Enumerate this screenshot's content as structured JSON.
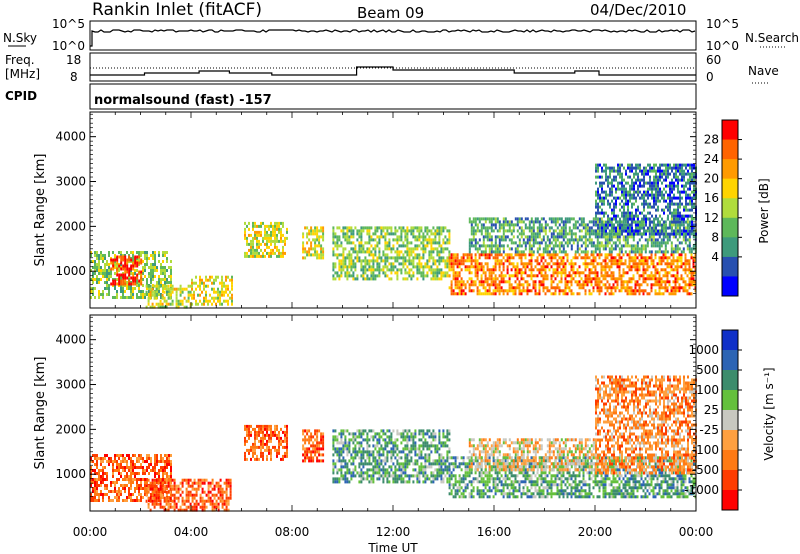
{
  "header": {
    "station": "Rankin Inlet (fitACF)",
    "beam": "Beam 09",
    "date": "04/Dec/2010"
  },
  "status_panels": {
    "nsky_label": "N.Sky",
    "nsearch_label": "N.Search",
    "log_ticks": [
      "10^5",
      "10^0"
    ],
    "freq_label_line1": "Freq.",
    "freq_label_line2": "[MHz]",
    "freq_ticks": [
      "18",
      "8"
    ],
    "nave_label": "Nave",
    "nave_ticks": [
      "60",
      "0"
    ],
    "cpid_label": "CPID",
    "cpid_text": "normalsound (fast) -157"
  },
  "power_colorbar": {
    "label": "Power [dB]",
    "ticks": [
      "28",
      "24",
      "20",
      "16",
      "12",
      "8",
      "4"
    ],
    "colors": [
      "#ff0000",
      "#ff6400",
      "#ff9a00",
      "#ffd400",
      "#b0dc3c",
      "#5eb85a",
      "#3e9a7c",
      "#2850b0",
      "#0000ff"
    ]
  },
  "velocity_colorbar": {
    "label": "Velocity [m s⁻¹]",
    "ticks": [
      "1000",
      "500",
      "100",
      "25",
      "-25",
      "-100",
      "-500",
      "-1000"
    ],
    "colors": [
      "#1030c8",
      "#2c64b4",
      "#3c8c6c",
      "#64c03c",
      "#c8c8c0",
      "#ffa040",
      "#ff7a14",
      "#ff3c00",
      "#ff0000"
    ]
  },
  "chart_data": [
    {
      "type": "heatmap",
      "title": "Power",
      "ylabel": "Slant Range [km]",
      "ylim": [
        180,
        4550
      ],
      "yticks": [
        1000,
        2000,
        3000,
        4000
      ],
      "xlim": [
        0,
        24
      ],
      "xticks": [
        "00:00",
        "04:00",
        "08:00",
        "12:00",
        "16:00",
        "20:00",
        "00:00"
      ],
      "regions": [
        {
          "t": [
            0.0,
            3.2
          ],
          "r": [
            400,
            1450
          ],
          "level": 4
        },
        {
          "t": [
            0.8,
            2.0
          ],
          "r": [
            700,
            1350
          ],
          "level": 8
        },
        {
          "t": [
            2.2,
            4.0
          ],
          "r": [
            200,
            700
          ],
          "level": 5
        },
        {
          "t": [
            4.0,
            5.6
          ],
          "r": [
            250,
            900
          ],
          "level": 5
        },
        {
          "t": [
            6.1,
            7.8
          ],
          "r": [
            1300,
            2100
          ],
          "level": 5
        },
        {
          "t": [
            8.4,
            9.2
          ],
          "r": [
            1300,
            2000
          ],
          "level": 5
        },
        {
          "t": [
            9.6,
            14.2
          ],
          "r": [
            800,
            2000
          ],
          "level": 4
        },
        {
          "t": [
            14.2,
            24.0
          ],
          "r": [
            500,
            1400
          ],
          "level": 7
        },
        {
          "t": [
            15.0,
            24.0
          ],
          "r": [
            1400,
            2200
          ],
          "level": 3
        },
        {
          "t": [
            20.0,
            24.0
          ],
          "r": [
            1800,
            3400
          ],
          "level": 2
        }
      ]
    },
    {
      "type": "heatmap",
      "title": "Velocity",
      "ylabel": "Slant Range [km]",
      "xlabel": "Time UT",
      "ylim": [
        180,
        4550
      ],
      "yticks": [
        1000,
        2000,
        3000,
        4000
      ],
      "xlim": [
        0,
        24
      ],
      "xticks": [
        "00:00",
        "04:00",
        "08:00",
        "12:00",
        "16:00",
        "20:00",
        "00:00"
      ],
      "regions": [
        {
          "t": [
            0.0,
            3.2
          ],
          "r": [
            400,
            1450
          ],
          "level": 2
        },
        {
          "t": [
            2.2,
            5.6
          ],
          "r": [
            200,
            900
          ],
          "level": 2
        },
        {
          "t": [
            6.1,
            7.8
          ],
          "r": [
            1300,
            2100
          ],
          "level": 2
        },
        {
          "t": [
            8.4,
            9.2
          ],
          "r": [
            1300,
            2000
          ],
          "level": 2
        },
        {
          "t": [
            9.6,
            14.2
          ],
          "r": [
            800,
            2000
          ],
          "level": 6
        },
        {
          "t": [
            14.2,
            24.0
          ],
          "r": [
            500,
            1400
          ],
          "level": 6
        },
        {
          "t": [
            15.0,
            20.0
          ],
          "r": [
            1100,
            1800
          ],
          "level": 4
        },
        {
          "t": [
            20.0,
            24.0
          ],
          "r": [
            1000,
            3200
          ],
          "level": 3
        }
      ]
    }
  ]
}
